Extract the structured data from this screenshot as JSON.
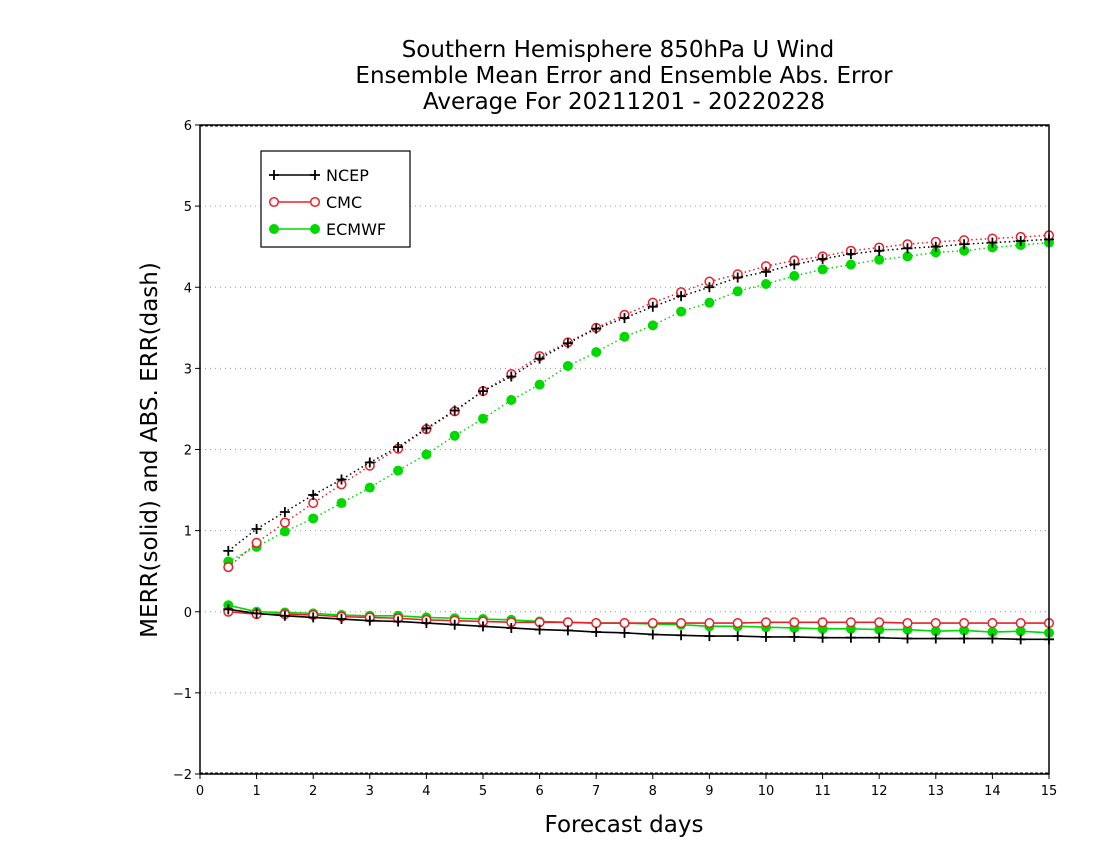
{
  "chart_data": {
    "type": "line",
    "title": [
      "Southern Hemisphere 850hPa U Wind",
      "Ensemble Mean Error and Ensemble Abs. Error",
      "Average For 20211201 - 20220228"
    ],
    "xlabel": "Forecast days",
    "ylabel": "MERR(solid) and ABS. ERR(dash)",
    "xlim": [
      0,
      15
    ],
    "ylim": [
      -2,
      6
    ],
    "xticks": [
      "0",
      "1",
      "2",
      "3",
      "4",
      "5",
      "6",
      "7",
      "8",
      "9",
      "10",
      "11",
      "12",
      "13",
      "14",
      "15"
    ],
    "yticks": [
      "−2",
      "−1",
      "0",
      "1",
      "2",
      "3",
      "4",
      "5",
      "6"
    ],
    "grid": "horizontal dotted",
    "legend_position": "top-left",
    "x": [
      0.5,
      1,
      1.5,
      2,
      2.5,
      3,
      3.5,
      4,
      4.5,
      5,
      5.5,
      6,
      6.5,
      7,
      7.5,
      8,
      8.5,
      9,
      9.5,
      10,
      10.5,
      11,
      11.5,
      12,
      12.5,
      13,
      13.5,
      14,
      14.5,
      15
    ],
    "series": [
      {
        "name": "NCEP",
        "color": "#000000",
        "marker": "plus",
        "merr": [
          0.03,
          -0.02,
          -0.05,
          -0.07,
          -0.09,
          -0.11,
          -0.12,
          -0.14,
          -0.16,
          -0.18,
          -0.2,
          -0.22,
          -0.23,
          -0.25,
          -0.26,
          -0.28,
          -0.29,
          -0.3,
          -0.3,
          -0.31,
          -0.31,
          -0.32,
          -0.32,
          -0.32,
          -0.33,
          -0.33,
          -0.33,
          -0.33,
          -0.34,
          -0.34
        ],
        "abs_err": [
          0.75,
          1.02,
          1.23,
          1.44,
          1.63,
          1.84,
          2.03,
          2.26,
          2.48,
          2.72,
          2.9,
          3.12,
          3.31,
          3.49,
          3.62,
          3.76,
          3.89,
          4.0,
          4.12,
          4.19,
          4.28,
          4.35,
          4.41,
          4.45,
          4.48,
          4.5,
          4.53,
          4.55,
          4.57,
          4.59
        ]
      },
      {
        "name": "CMC",
        "color": "#e8202a",
        "marker": "open-circle",
        "merr": [
          0.0,
          -0.03,
          -0.03,
          -0.04,
          -0.06,
          -0.07,
          -0.08,
          -0.1,
          -0.11,
          -0.12,
          -0.13,
          -0.13,
          -0.13,
          -0.14,
          -0.14,
          -0.14,
          -0.14,
          -0.14,
          -0.14,
          -0.13,
          -0.13,
          -0.13,
          -0.13,
          -0.13,
          -0.14,
          -0.14,
          -0.14,
          -0.14,
          -0.14,
          -0.14
        ],
        "abs_err": [
          0.55,
          0.85,
          1.1,
          1.34,
          1.57,
          1.8,
          2.01,
          2.25,
          2.47,
          2.72,
          2.93,
          3.15,
          3.32,
          3.5,
          3.66,
          3.81,
          3.94,
          4.07,
          4.16,
          4.26,
          4.33,
          4.38,
          4.45,
          4.49,
          4.53,
          4.56,
          4.58,
          4.6,
          4.62,
          4.64
        ]
      },
      {
        "name": "ECMWF",
        "color": "#00d800",
        "marker": "filled-circle",
        "merr": [
          0.08,
          0.0,
          -0.01,
          -0.02,
          -0.04,
          -0.05,
          -0.05,
          -0.07,
          -0.08,
          -0.09,
          -0.1,
          -0.12,
          -0.13,
          -0.14,
          -0.14,
          -0.15,
          -0.16,
          -0.18,
          -0.18,
          -0.19,
          -0.2,
          -0.21,
          -0.21,
          -0.22,
          -0.22,
          -0.24,
          -0.23,
          -0.25,
          -0.24,
          -0.26
        ],
        "abs_err": [
          0.62,
          0.8,
          0.99,
          1.15,
          1.34,
          1.53,
          1.74,
          1.94,
          2.17,
          2.38,
          2.61,
          2.8,
          3.03,
          3.2,
          3.39,
          3.53,
          3.7,
          3.81,
          3.95,
          4.04,
          4.14,
          4.22,
          4.28,
          4.34,
          4.38,
          4.43,
          4.45,
          4.49,
          4.52,
          4.55
        ]
      }
    ]
  }
}
